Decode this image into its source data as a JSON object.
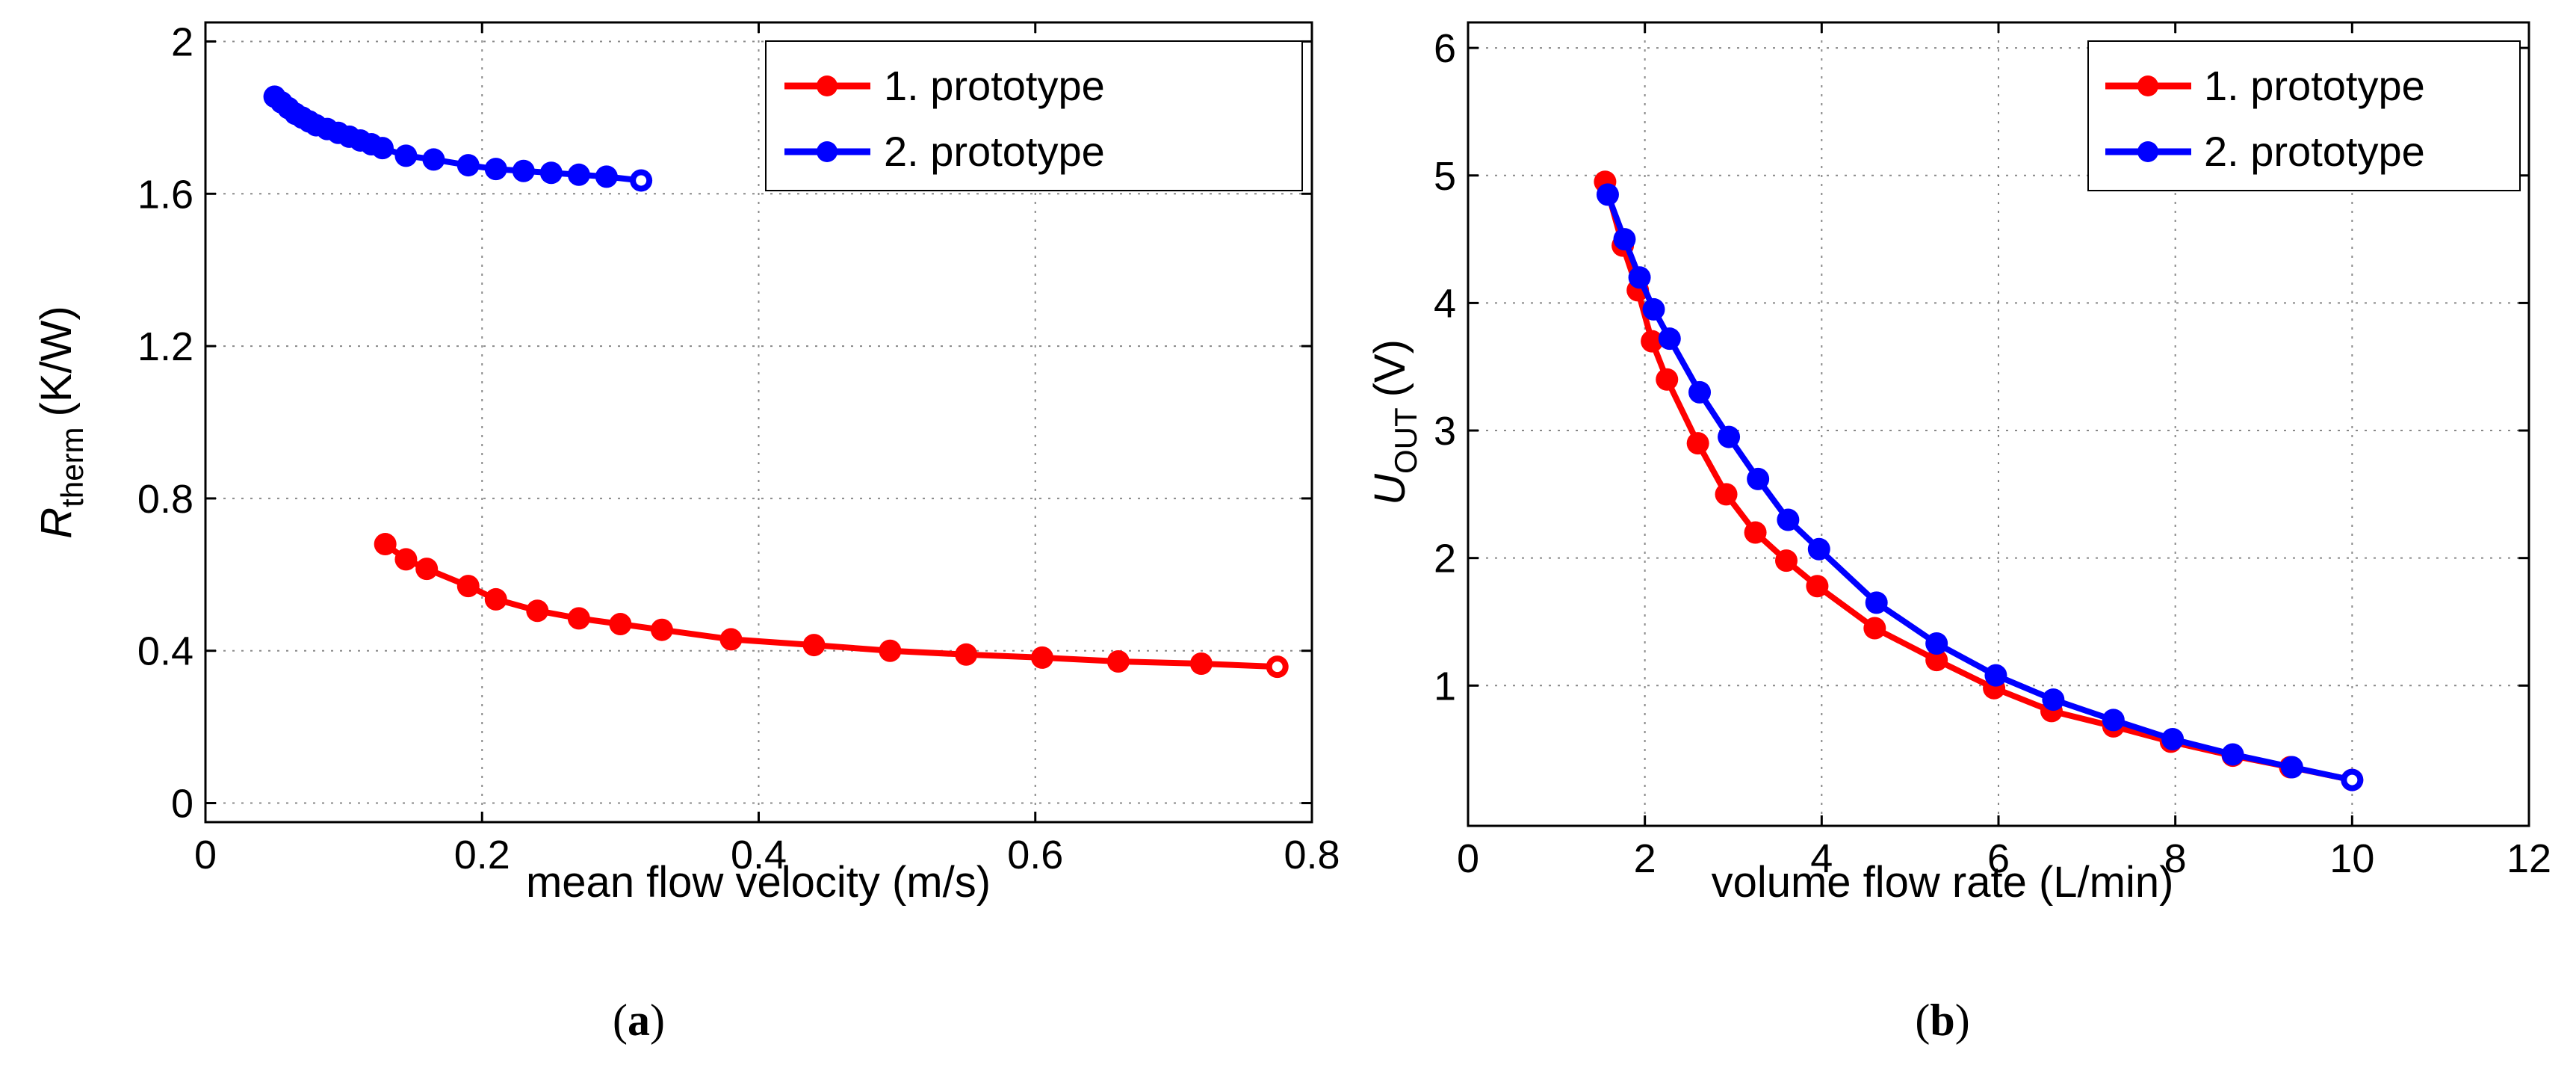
{
  "chart_data": [
    {
      "type": "line",
      "panel_label": "a",
      "title": "",
      "xlabel": "mean flow velocity (m/s)",
      "ylabel_main": "R",
      "ylabel_sub": "therm",
      "ylabel_unit": "(K/W)",
      "xlim": [
        0,
        0.8
      ],
      "ylim": [
        -0.05,
        2.05
      ],
      "xticks": [
        0,
        0.2,
        0.4,
        0.6,
        0.8
      ],
      "xtick_labels": [
        "0",
        "0.2",
        "0.4",
        "0.6",
        "0.8"
      ],
      "yticks": [
        0,
        0.4,
        0.8,
        1.2,
        1.6,
        2
      ],
      "ytick_labels": [
        "0",
        "0.4",
        "0.8",
        "1.2",
        "1.6",
        "2"
      ],
      "grid": true,
      "legend": "top-right",
      "series": [
        {
          "name": "1. prototype",
          "color": "#ff0000",
          "x": [
            0.13,
            0.145,
            0.16,
            0.19,
            0.21,
            0.24,
            0.27,
            0.3,
            0.33,
            0.38,
            0.44,
            0.495,
            0.55,
            0.605,
            0.66,
            0.72,
            0.775
          ],
          "y": [
            0.68,
            0.64,
            0.615,
            0.57,
            0.535,
            0.505,
            0.485,
            0.47,
            0.455,
            0.43,
            0.415,
            0.4,
            0.39,
            0.382,
            0.372,
            0.366,
            0.358
          ]
        },
        {
          "name": "2. prototype",
          "color": "#0000ff",
          "x": [
            0.05,
            0.055,
            0.06,
            0.065,
            0.07,
            0.075,
            0.08,
            0.088,
            0.096,
            0.104,
            0.112,
            0.12,
            0.128,
            0.145,
            0.165,
            0.19,
            0.21,
            0.23,
            0.25,
            0.27,
            0.29,
            0.315
          ],
          "y": [
            1.855,
            1.84,
            1.825,
            1.81,
            1.8,
            1.79,
            1.78,
            1.77,
            1.76,
            1.75,
            1.74,
            1.73,
            1.72,
            1.7,
            1.69,
            1.675,
            1.665,
            1.66,
            1.655,
            1.65,
            1.645,
            1.635
          ]
        }
      ]
    },
    {
      "type": "line",
      "panel_label": "b",
      "title": "",
      "xlabel": "volume flow rate (L/min)",
      "ylabel_main": "U",
      "ylabel_sub": "OUT",
      "ylabel_unit": "(V)",
      "xlim": [
        0,
        12
      ],
      "ylim": [
        -0.1,
        6.2
      ],
      "xticks": [
        0,
        2,
        4,
        6,
        8,
        10,
        12
      ],
      "xtick_labels": [
        "0",
        "2",
        "4",
        "6",
        "8",
        "10",
        "12"
      ],
      "yticks": [
        1,
        2,
        3,
        4,
        5,
        6
      ],
      "ytick_labels": [
        "1",
        "2",
        "3",
        "4",
        "5",
        "6"
      ],
      "grid": true,
      "legend": "top-right",
      "series": [
        {
          "name": "1. prototype",
          "color": "#ff0000",
          "x": [
            1.55,
            1.75,
            1.92,
            2.08,
            2.25,
            2.6,
            2.92,
            3.25,
            3.6,
            3.95,
            4.6,
            5.3,
            5.95,
            6.6,
            7.3,
            7.95,
            8.65,
            9.3,
            10.0
          ],
          "y": [
            4.95,
            4.45,
            4.1,
            3.7,
            3.4,
            2.9,
            2.5,
            2.2,
            1.98,
            1.78,
            1.45,
            1.2,
            0.98,
            0.8,
            0.68,
            0.56,
            0.45,
            0.36,
            0.26
          ]
        },
        {
          "name": "2. prototype",
          "color": "#0000ff",
          "x": [
            1.58,
            1.77,
            1.94,
            2.1,
            2.28,
            2.62,
            2.95,
            3.28,
            3.62,
            3.97,
            4.62,
            5.3,
            5.97,
            6.62,
            7.3,
            7.97,
            8.65,
            9.32,
            10.0
          ],
          "y": [
            4.85,
            4.5,
            4.2,
            3.95,
            3.72,
            3.3,
            2.95,
            2.62,
            2.3,
            2.07,
            1.65,
            1.33,
            1.08,
            0.89,
            0.73,
            0.58,
            0.46,
            0.36,
            0.26
          ]
        }
      ]
    }
  ],
  "captions": [
    {
      "open": "(",
      "label": "a",
      "close": ")"
    },
    {
      "open": "(",
      "label": "b",
      "close": ")"
    }
  ]
}
